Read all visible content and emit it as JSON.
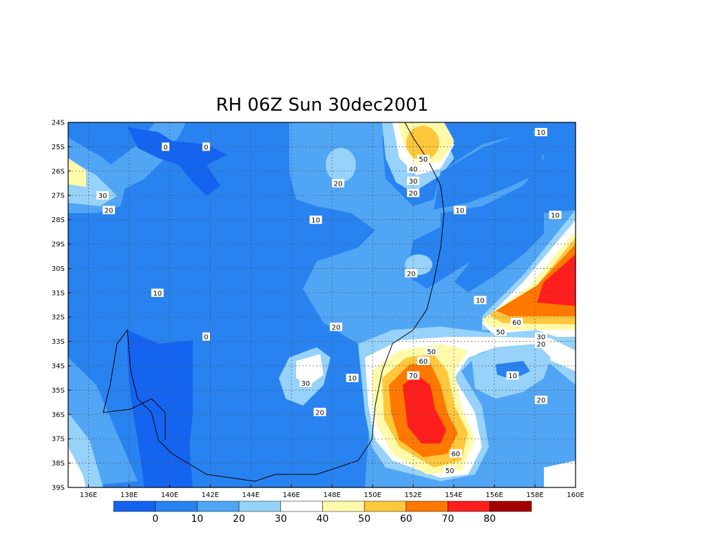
{
  "title": "RH 06Z Sun 30dec2001",
  "map": {
    "lon_labels": [
      "136E",
      "138E",
      "140E",
      "142E",
      "144E",
      "146E",
      "148E",
      "150E",
      "152E",
      "154E",
      "156E",
      "158E",
      "160E"
    ],
    "lat_labels": [
      "24S",
      "25S",
      "26S",
      "27S",
      "28S",
      "29S",
      "30S",
      "31S",
      "32S",
      "33S",
      "34S",
      "35S",
      "36S",
      "37S",
      "38S",
      "39S"
    ],
    "lon_range": [
      135,
      160
    ],
    "lat_range": [
      -24,
      -39
    ],
    "grid": true
  },
  "contour_labels": [
    {
      "text": "0",
      "lon": 139.8,
      "lat": -25.0
    },
    {
      "text": "0",
      "lon": 141.8,
      "lat": -25.0
    },
    {
      "text": "30",
      "lon": 136.7,
      "lat": -27.0
    },
    {
      "text": "20",
      "lon": 137.0,
      "lat": -27.6
    },
    {
      "text": "20",
      "lon": 148.3,
      "lat": -26.5
    },
    {
      "text": "10",
      "lon": 147.2,
      "lat": -28.0
    },
    {
      "text": "10",
      "lon": 139.4,
      "lat": -31.0
    },
    {
      "text": "0",
      "lon": 141.8,
      "lat": -32.8
    },
    {
      "text": "20",
      "lon": 148.2,
      "lat": -32.4
    },
    {
      "text": "30",
      "lon": 146.7,
      "lat": -34.7
    },
    {
      "text": "10",
      "lon": 149.0,
      "lat": -34.5
    },
    {
      "text": "20",
      "lon": 147.4,
      "lat": -35.9
    },
    {
      "text": "20",
      "lon": 151.9,
      "lat": -30.2
    },
    {
      "text": "50",
      "lon": 152.5,
      "lat": -25.5
    },
    {
      "text": "40",
      "lon": 152.0,
      "lat": -25.9
    },
    {
      "text": "30",
      "lon": 152.0,
      "lat": -26.4
    },
    {
      "text": "20",
      "lon": 152.0,
      "lat": -26.9
    },
    {
      "text": "10",
      "lon": 154.3,
      "lat": -27.6
    },
    {
      "text": "10",
      "lon": 158.3,
      "lat": -24.4
    },
    {
      "text": "10",
      "lon": 159.0,
      "lat": -27.8
    },
    {
      "text": "10",
      "lon": 155.3,
      "lat": -31.3
    },
    {
      "text": "60",
      "lon": 157.1,
      "lat": -32.2
    },
    {
      "text": "50",
      "lon": 156.3,
      "lat": -32.6
    },
    {
      "text": "30",
      "lon": 158.3,
      "lat": -32.8
    },
    {
      "text": "20",
      "lon": 158.3,
      "lat": -33.1
    },
    {
      "text": "50",
      "lon": 152.9,
      "lat": -33.4
    },
    {
      "text": "60",
      "lon": 152.5,
      "lat": -33.8
    },
    {
      "text": "70",
      "lon": 152.0,
      "lat": -34.4
    },
    {
      "text": "10",
      "lon": 156.9,
      "lat": -34.4
    },
    {
      "text": "20",
      "lon": 158.3,
      "lat": -35.4
    },
    {
      "text": "60",
      "lon": 154.1,
      "lat": -37.6
    },
    {
      "text": "50",
      "lon": 153.8,
      "lat": -38.3
    }
  ],
  "colorbar": {
    "labels": [
      "0",
      "10",
      "20",
      "30",
      "40",
      "50",
      "60",
      "70",
      "80"
    ],
    "colors": [
      "#1464f0",
      "#2882f0",
      "#50a5f5",
      "#96d2fa",
      "#ffffff",
      "#fffaaa",
      "#ffc83c",
      "#ff7800",
      "#ff1e1e",
      "#a50000"
    ]
  }
}
